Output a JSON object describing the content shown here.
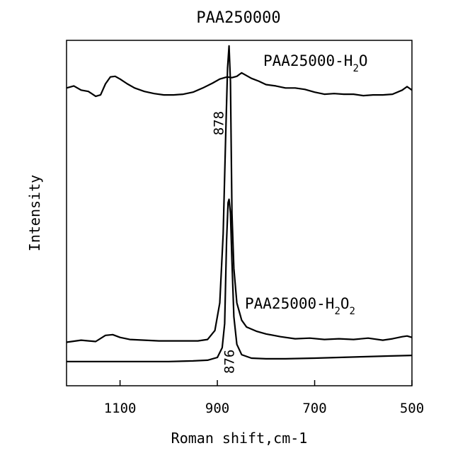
{
  "chart_data": {
    "type": "line",
    "title": "PAA250000",
    "xlabel": "Roman shift,cm-1",
    "ylabel": "Intensity",
    "xlim": [
      1210,
      500
    ],
    "x_reversed": true,
    "ylim": [
      0,
      1
    ],
    "grid": false,
    "x_ticks": [
      1100,
      900,
      700,
      500
    ],
    "x_tick_labels": [
      "1100",
      "900",
      "700",
      "500"
    ],
    "series": [
      {
        "name": "PAA25000-H2O",
        "label_parts": [
          "PAA25000-H",
          "2",
          "O"
        ],
        "x": [
          1210,
          1195,
          1180,
          1165,
          1150,
          1140,
          1130,
          1120,
          1110,
          1100,
          1085,
          1070,
          1050,
          1030,
          1010,
          990,
          970,
          950,
          930,
          910,
          895,
          880,
          870,
          860,
          850,
          840,
          830,
          815,
          800,
          780,
          760,
          740,
          720,
          700,
          680,
          660,
          640,
          620,
          600,
          580,
          560,
          540,
          520,
          510,
          500
        ],
        "y": [
          0.862,
          0.868,
          0.856,
          0.852,
          0.838,
          0.842,
          0.874,
          0.894,
          0.896,
          0.888,
          0.874,
          0.862,
          0.852,
          0.846,
          0.842,
          0.842,
          0.844,
          0.85,
          0.862,
          0.876,
          0.888,
          0.894,
          0.892,
          0.896,
          0.906,
          0.898,
          0.89,
          0.882,
          0.872,
          0.868,
          0.862,
          0.862,
          0.858,
          0.85,
          0.844,
          0.846,
          0.844,
          0.844,
          0.84,
          0.842,
          0.842,
          0.844,
          0.856,
          0.866,
          0.856
        ]
      },
      {
        "name": "PAA25000-H2O2",
        "label_parts": [
          "PAA25000-H",
          "2",
          "O",
          "2"
        ],
        "x": [
          1210,
          1180,
          1150,
          1130,
          1115,
          1100,
          1080,
          1050,
          1020,
          990,
          960,
          940,
          920,
          905,
          895,
          888,
          883,
          879,
          876,
          873,
          870,
          866,
          860,
          850,
          840,
          820,
          800,
          770,
          740,
          710,
          680,
          650,
          620,
          590,
          560,
          540,
          520,
          510,
          500
        ],
        "y": [
          0.126,
          0.132,
          0.128,
          0.146,
          0.148,
          0.14,
          0.134,
          0.132,
          0.13,
          0.13,
          0.13,
          0.13,
          0.134,
          0.16,
          0.24,
          0.44,
          0.72,
          0.92,
          0.984,
          0.88,
          0.5,
          0.34,
          0.24,
          0.19,
          0.17,
          0.158,
          0.15,
          0.142,
          0.136,
          0.138,
          0.134,
          0.136,
          0.134,
          0.138,
          0.132,
          0.136,
          0.142,
          0.144,
          0.14
        ]
      },
      {
        "name": "",
        "x": [
          1210,
          1100,
          1000,
          950,
          920,
          900,
          890,
          885,
          881,
          878,
          876,
          873,
          870,
          866,
          860,
          850,
          830,
          800,
          760,
          700,
          650,
          600,
          550,
          500
        ],
        "y": [
          0.07,
          0.07,
          0.07,
          0.072,
          0.074,
          0.082,
          0.11,
          0.18,
          0.42,
          0.53,
          0.54,
          0.5,
          0.36,
          0.2,
          0.12,
          0.09,
          0.08,
          0.078,
          0.078,
          0.08,
          0.082,
          0.084,
          0.086,
          0.088
        ]
      }
    ],
    "annotations": [
      {
        "text": "878",
        "x": 888,
        "y": 0.76,
        "rotation": -90
      },
      {
        "text": "876",
        "x": 866,
        "y": 0.07,
        "rotation": -90
      }
    ]
  }
}
